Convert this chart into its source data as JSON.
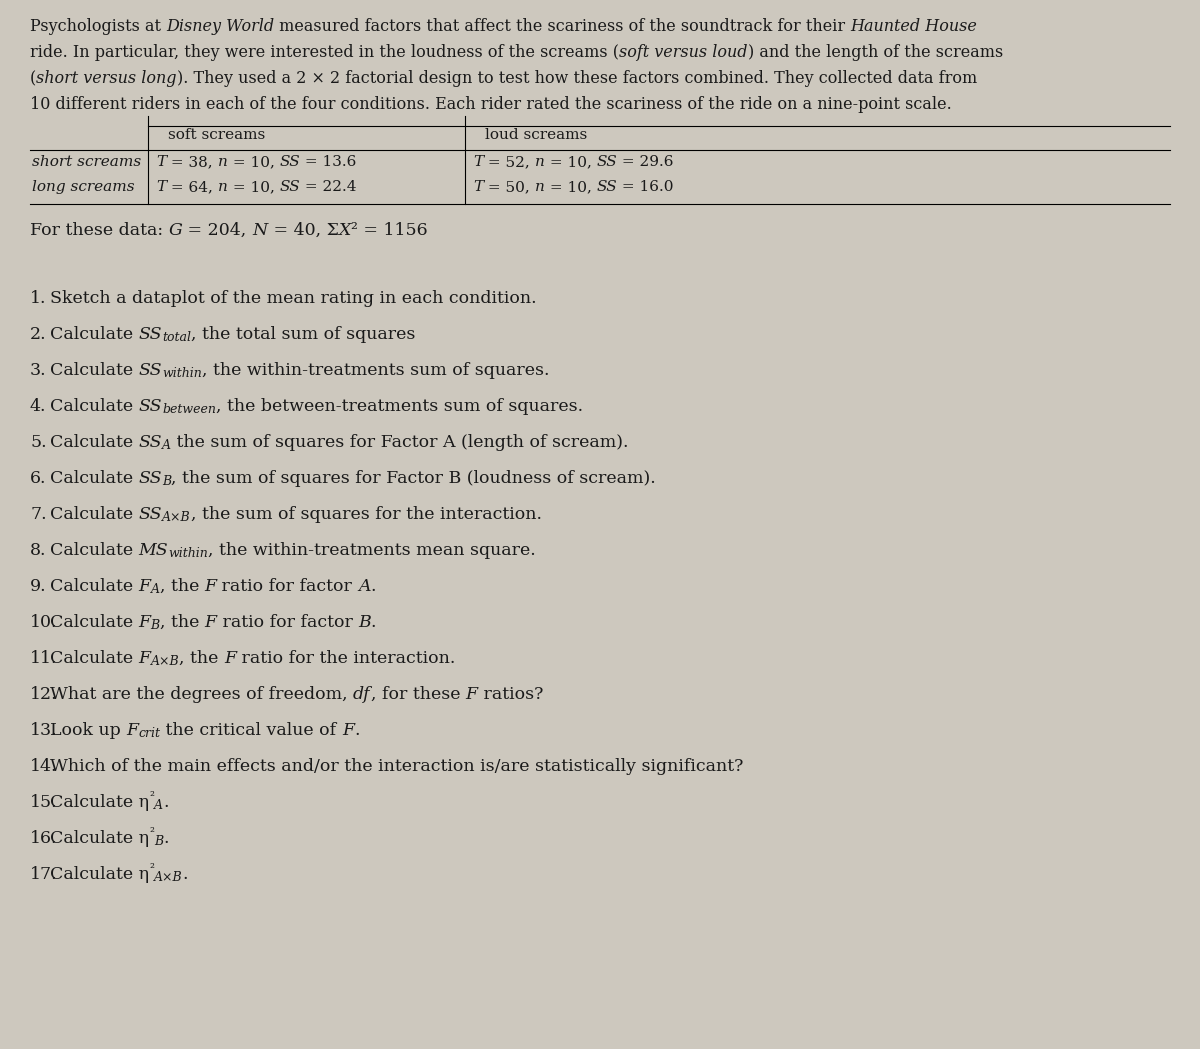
{
  "bg_color": "#cdc8be",
  "text_color": "#1a1a1a",
  "font_size_intro": 11.5,
  "font_size_table": 11.0,
  "font_size_questions": 12.5,
  "font_size_summary": 12.5
}
